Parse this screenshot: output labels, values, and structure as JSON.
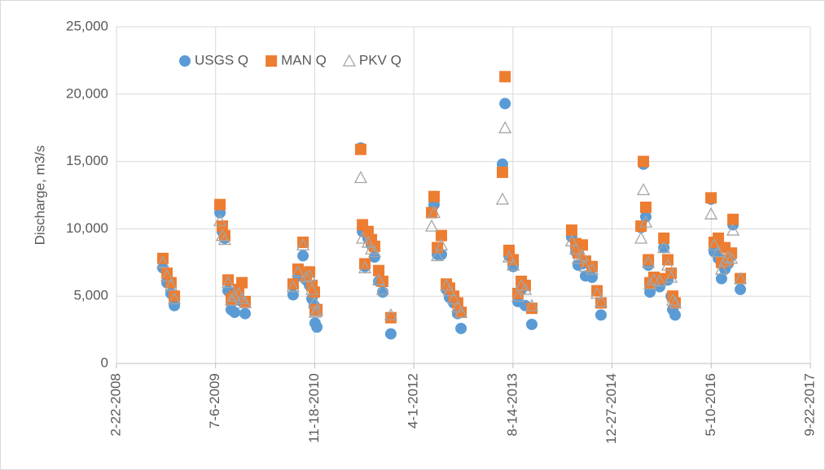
{
  "chart_data": {
    "type": "scatter",
    "y_label": "Discharge, m3/s",
    "x": [
      "2008-10-13",
      "2008-11-03",
      "2008-11-23",
      "2008-12-10",
      "2009-07-28",
      "2009-08-09",
      "2009-08-21",
      "2009-09-07",
      "2009-09-23",
      "2009-10-10",
      "2009-10-30",
      "2009-11-16",
      "2009-12-02",
      "2010-08-01",
      "2010-08-26",
      "2010-09-20",
      "2010-10-06",
      "2010-10-23",
      "2010-11-04",
      "2010-11-16",
      "2010-11-20",
      "2010-11-29",
      "2011-07-08",
      "2011-07-17",
      "2011-07-29",
      "2011-08-14",
      "2011-08-31",
      "2011-09-16",
      "2011-10-07",
      "2011-10-27",
      "2011-12-07",
      "2012-06-30",
      "2012-07-12",
      "2012-07-29",
      "2012-08-18",
      "2012-09-12",
      "2012-09-28",
      "2012-10-19",
      "2012-11-08",
      "2012-11-25",
      "2013-06-22",
      "2013-07-05",
      "2013-07-25",
      "2013-08-15",
      "2013-09-08",
      "2013-09-25",
      "2013-10-15",
      "2013-11-17",
      "2014-06-06",
      "2014-06-27",
      "2014-07-09",
      "2014-07-30",
      "2014-08-15",
      "2014-09-17",
      "2014-10-12",
      "2014-11-01",
      "2015-05-22",
      "2015-06-03",
      "2015-06-15",
      "2015-06-28",
      "2015-07-06",
      "2015-07-26",
      "2015-08-24",
      "2015-09-14",
      "2015-10-04",
      "2015-10-21",
      "2015-10-29",
      "2015-11-10",
      "2016-05-09",
      "2016-05-25",
      "2016-06-15",
      "2016-07-01",
      "2016-07-18",
      "2016-08-03",
      "2016-08-20",
      "2016-08-28",
      "2016-10-04"
    ],
    "series": [
      {
        "name": "USGS Q",
        "color": "#5b9bd5",
        "marker": "circle",
        "values": [
          7100,
          6000,
          5200,
          4300,
          11200,
          9800,
          9300,
          5400,
          4000,
          3800,
          5000,
          4600,
          3700,
          5100,
          6500,
          8000,
          6200,
          5800,
          4800,
          4300,
          3000,
          2700,
          16000,
          9800,
          7200,
          9300,
          8800,
          7900,
          6100,
          5300,
          2200,
          11300,
          11800,
          8100,
          8100,
          5500,
          4900,
          4500,
          3700,
          2600,
          14800,
          19300,
          8000,
          7200,
          4600,
          5500,
          4300,
          2900,
          9400,
          8300,
          7300,
          7400,
          6500,
          6400,
          5400,
          3600,
          10100,
          14800,
          10900,
          7300,
          5300,
          6200,
          5700,
          8600,
          6200,
          5000,
          4000,
          3600,
          12200,
          8300,
          7800,
          6300,
          7000,
          7400,
          8000,
          10300,
          5500
        ]
      },
      {
        "name": "MAN Q",
        "color": "#ed7d31",
        "marker": "square",
        "values": [
          7800,
          6700,
          6000,
          5000,
          11800,
          10200,
          9500,
          6200,
          4800,
          5000,
          5500,
          6000,
          4600,
          5900,
          7000,
          9000,
          6500,
          6800,
          5800,
          5300,
          4000,
          4000,
          15900,
          10300,
          7400,
          9800,
          9200,
          8700,
          6900,
          6100,
          3400,
          11200,
          12400,
          8600,
          9500,
          5900,
          5600,
          5000,
          4500,
          3800,
          14200,
          21300,
          8400,
          7700,
          5200,
          6100,
          5800,
          4100,
          9900,
          8900,
          8200,
          8800,
          7600,
          7200,
          5400,
          4500,
          10200,
          15000,
          11600,
          7700,
          6000,
          6400,
          6300,
          9300,
          7700,
          6700,
          5000,
          4500,
          12300,
          9000,
          9300,
          7500,
          8600,
          7700,
          8200,
          10700,
          6300
        ]
      },
      {
        "name": "PKV Q",
        "color": "#a5a5a5",
        "marker": "triangle",
        "values": [
          7500,
          6500,
          5800,
          4800,
          10600,
          9500,
          9200,
          6000,
          4700,
          5000,
          5200,
          4800,
          4500,
          5700,
          6800,
          8800,
          6400,
          6500,
          5500,
          4500,
          3800,
          3900,
          13800,
          9300,
          7100,
          9000,
          8500,
          8300,
          6200,
          5500,
          3600,
          10200,
          11200,
          8000,
          8800,
          5800,
          5400,
          4800,
          4200,
          3800,
          12200,
          17500,
          7900,
          7300,
          5000,
          5800,
          5500,
          4300,
          9100,
          8500,
          7800,
          8000,
          7200,
          7000,
          5200,
          4600,
          9300,
          12900,
          10500,
          7500,
          5900,
          6200,
          6100,
          8600,
          7300,
          6400,
          4700,
          4500,
          11100,
          8800,
          8300,
          7000,
          7600,
          7900,
          7800,
          9900,
          6300
        ]
      }
    ],
    "xlim": [
      "2008-02-22",
      "2017-09-22"
    ],
    "xticks": [
      {
        "value": "2008-02-22",
        "label": "2-22-2008"
      },
      {
        "value": "2009-07-06",
        "label": "7-6-2009"
      },
      {
        "value": "2010-11-18",
        "label": "11-18-2010"
      },
      {
        "value": "2012-04-01",
        "label": "4-1-2012"
      },
      {
        "value": "2013-08-14",
        "label": "8-14-2013"
      },
      {
        "value": "2014-12-27",
        "label": "12-27-2014"
      },
      {
        "value": "2016-05-10",
        "label": "5-10-2016"
      },
      {
        "value": "2017-09-22",
        "label": "9-22-2017"
      }
    ],
    "ylim": [
      0,
      25000
    ],
    "yticks": [
      0,
      {
        "value": 5000,
        "label": "5,000"
      },
      {
        "value": 10000,
        "label": "10,000"
      },
      {
        "value": 15000,
        "label": "15,000"
      },
      {
        "value": 20000,
        "label": "20,000"
      },
      {
        "value": 25000,
        "label": "25,000"
      }
    ],
    "grid": true,
    "legend": "top-left"
  }
}
